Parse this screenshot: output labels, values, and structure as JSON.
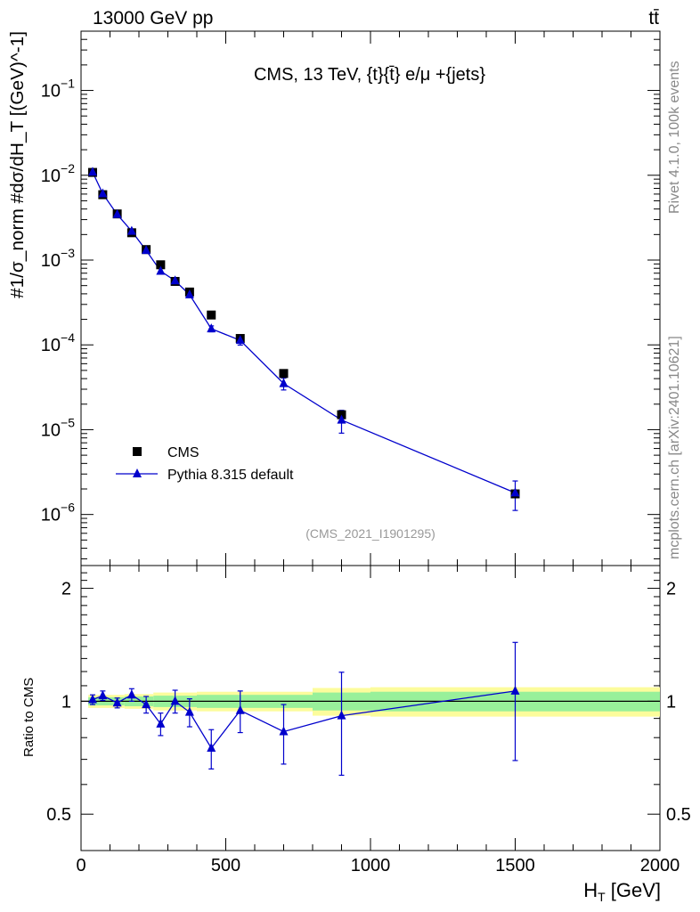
{
  "header": {
    "left": "13000 GeV pp",
    "right": "tt̄"
  },
  "side": {
    "rivet": "Rivet 4.1.0,  100k events",
    "mcplots": "mcplots.cern.ch [arXiv:2401.10621]"
  },
  "chart_data": {
    "type": "scatter",
    "title": "CMS, 13 TeV, {t}{t̄} e/μ +{jets}",
    "analysis_id": "(CMS_2021_I1901295)",
    "xlabel": "H_T [GeV]",
    "xlabel_main": "H",
    "xlabel_sub": "T",
    "xlabel_unit": " [GeV]",
    "ylabel": "#1/σ_norm #dσ/dH_T [(GeV)^-1]",
    "xlim": [
      0,
      2000
    ],
    "ylim": [
      2.5e-07,
      0.5
    ],
    "xticks": [
      0,
      500,
      1000,
      1500,
      2000
    ],
    "xtick_labels": [
      "0",
      "500",
      "1000",
      "1500",
      "2000"
    ],
    "ytick_labels": [
      "10^-1",
      "10^-2",
      "10^-3",
      "10^-4",
      "10^-5",
      "10^-6"
    ],
    "legend": {
      "placement": "lower-left",
      "entries": [
        "CMS",
        "Pythia 8.315 default"
      ]
    },
    "x": [
      40,
      75,
      125,
      175,
      225,
      275,
      325,
      375,
      450,
      550,
      700,
      900,
      1500
    ],
    "series": [
      {
        "name": "CMS",
        "values": [
          0.0108,
          0.0059,
          0.0035,
          0.0021,
          0.00133,
          0.00088,
          0.00056,
          0.00042,
          0.000225,
          0.000119,
          4.6e-05,
          1.5e-05,
          1.75e-06
        ]
      },
      {
        "name": "Pythia 8.315 default",
        "values": [
          0.0109,
          0.00605,
          0.00345,
          0.00219,
          0.0013,
          0.00074,
          0.00057,
          0.00039,
          0.000155,
          0.000113,
          3.5e-05,
          1.3e-05,
          1.8e-06
        ]
      }
    ],
    "mc_yerr_rel": [
      0.03,
      0.03,
      0.03,
      0.04,
      0.05,
      0.05,
      0.07,
      0.08,
      0.08,
      0.12,
      0.16,
      0.3,
      0.38
    ],
    "ratio": {
      "ylabel": "Ratio to CMS",
      "ylim": [
        0.4,
        2.3
      ],
      "ytick_labels": [
        "0.5",
        "1",
        "2"
      ],
      "values": [
        1.01,
        1.035,
        0.99,
        1.04,
        0.98,
        0.87,
        1.0,
        0.935,
        0.75,
        0.945,
        0.83,
        0.915,
        1.065
      ],
      "errors": [
        0.03,
        0.03,
        0.03,
        0.04,
        0.05,
        0.06,
        0.07,
        0.08,
        0.09,
        0.12,
        0.15,
        0.28,
        0.37
      ],
      "bands": [
        {
          "x0": 25,
          "x1": 150,
          "inner": 0.025,
          "outer": 0.04
        },
        {
          "x0": 150,
          "x1": 250,
          "inner": 0.03,
          "outer": 0.045
        },
        {
          "x0": 250,
          "x1": 400,
          "inner": 0.035,
          "outer": 0.055
        },
        {
          "x0": 400,
          "x1": 600,
          "inner": 0.04,
          "outer": 0.06
        },
        {
          "x0": 600,
          "x1": 800,
          "inner": 0.04,
          "outer": 0.06
        },
        {
          "x0": 800,
          "x1": 1000,
          "inner": 0.055,
          "outer": 0.085
        },
        {
          "x0": 1000,
          "x1": 2000,
          "inner": 0.06,
          "outer": 0.09
        }
      ]
    },
    "colors": {
      "data": "#000000",
      "mc": "#0000cc",
      "band_inner": "#98f09a",
      "band_outer": "#fcfc9c"
    }
  }
}
